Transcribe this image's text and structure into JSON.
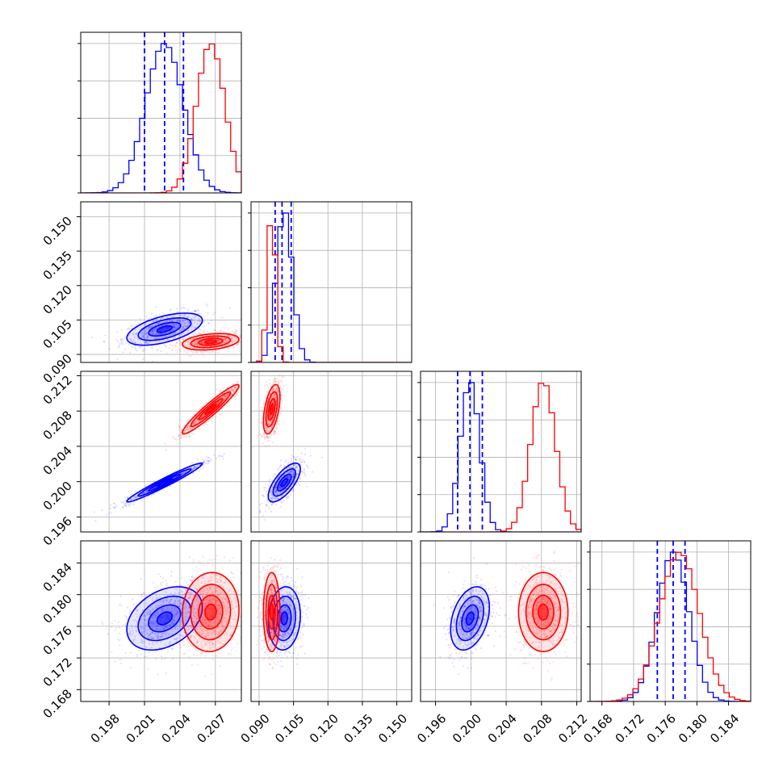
{
  "colors": {
    "run_a": "#0000ff",
    "run_b": "#ff0000",
    "grid": "#b0b0b0",
    "axis": "#000000"
  },
  "chart_data": {
    "type": "corner",
    "grid": true,
    "parameters": [
      {
        "ticks": [
          "0.198",
          "0.201",
          "0.204",
          "0.207"
        ],
        "range": [
          0.1956,
          0.2092
        ]
      },
      {
        "ticks": [
          "0.090",
          "0.105",
          "0.120",
          "0.135",
          "0.150"
        ],
        "range": [
          0.0865,
          0.1565
        ]
      },
      {
        "ticks": [
          "0.196",
          "0.200",
          "0.204",
          "0.208",
          "0.212"
        ],
        "range": [
          0.1943,
          0.2125
        ]
      },
      {
        "ticks": [
          "0.168",
          "0.172",
          "0.176",
          "0.180",
          "0.184"
        ],
        "range": [
          0.1665,
          0.1868
        ]
      }
    ],
    "series": [
      {
        "color": "#0000ff",
        "means": [
          0.2027,
          0.101,
          0.1999,
          0.177
        ],
        "sds": [
          0.0016,
          0.0035,
          0.0011,
          0.002
        ],
        "quantiles": [
          [
            0.201,
            0.2027,
            0.2043
          ],
          [
            0.097,
            0.1,
            0.104
          ],
          [
            0.1985,
            0.1999,
            0.2013
          ],
          [
            0.175,
            0.177,
            0.1785
          ]
        ],
        "correlations": [
          [
            0,
            1,
            0.55
          ],
          [
            0,
            2,
            0.97
          ],
          [
            0,
            3,
            0.35
          ],
          [
            1,
            2,
            0.7
          ],
          [
            1,
            3,
            0.1
          ],
          [
            2,
            3,
            0.35
          ]
        ]
      },
      {
        "color": "#ff0000",
        "means": [
          0.2066,
          0.0955,
          0.2082,
          0.1778
        ],
        "sds": [
          0.0012,
          0.0018,
          0.0014,
          0.0025
        ],
        "correlations": [
          [
            0,
            1,
            0.3
          ],
          [
            0,
            2,
            0.95
          ],
          [
            0,
            3,
            0.05
          ],
          [
            1,
            2,
            0.5
          ],
          [
            1,
            3,
            0.0
          ],
          [
            2,
            3,
            0.0
          ]
        ]
      }
    ]
  }
}
